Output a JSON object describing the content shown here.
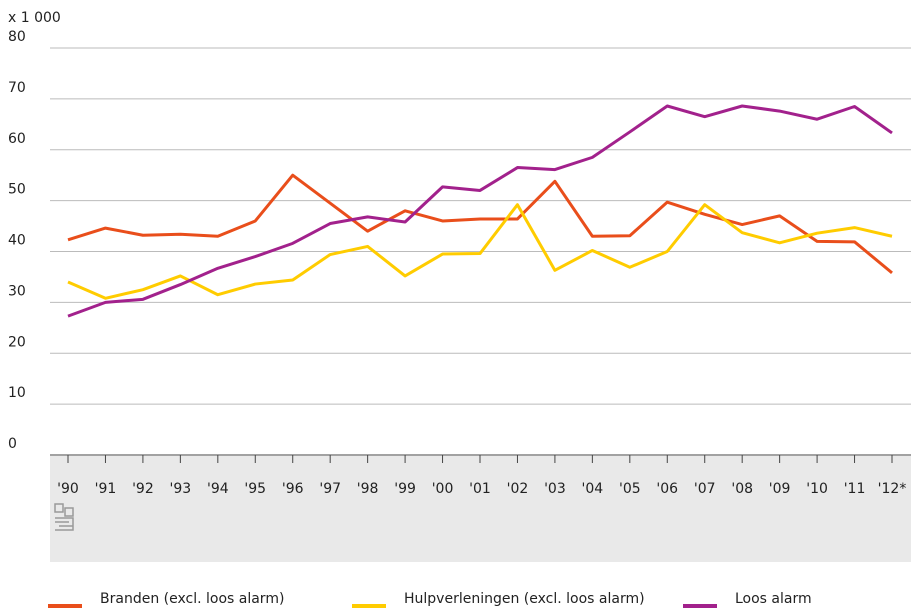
{
  "chart_data": {
    "type": "line",
    "y_label": "x 1 000",
    "categories": [
      "'90",
      "'91",
      "'92",
      "'93",
      "'94",
      "'95",
      "'96",
      "'97",
      "'98",
      "'99",
      "'00",
      "'01",
      "'02",
      "'03",
      "'04",
      "'05",
      "'06",
      "'07",
      "'08",
      "'09",
      "'10",
      "'11",
      "'12*"
    ],
    "series": [
      {
        "name": "Branden (excl. loos alarm)",
        "color": "#e94e1b",
        "values": [
          42.3,
          44.6,
          43.2,
          43.4,
          43.0,
          46.0,
          55.0,
          49.5,
          44.0,
          48.0,
          46.0,
          46.4,
          46.4,
          53.8,
          43.0,
          43.1,
          49.7,
          47.3,
          45.3,
          47.0,
          42.0,
          41.9,
          35.8
        ]
      },
      {
        "name": "Hulpverleningen (excl. loos alarm)",
        "color": "#ffcc00",
        "values": [
          34.0,
          30.8,
          32.5,
          35.2,
          31.5,
          33.6,
          34.4,
          39.4,
          41.0,
          35.2,
          39.5,
          39.6,
          49.2,
          36.3,
          40.2,
          36.9,
          40.0,
          49.2,
          43.7,
          41.7,
          43.6,
          44.7,
          43.0
        ]
      },
      {
        "name": "Loos alarm",
        "color": "#a2218c",
        "values": [
          27.3,
          30.0,
          30.6,
          33.5,
          36.7,
          39.0,
          41.6,
          45.5,
          46.8,
          45.8,
          52.7,
          52.0,
          56.5,
          56.1,
          58.5,
          63.5,
          68.6,
          66.5,
          68.6,
          67.6,
          66.0,
          68.5,
          63.3
        ]
      }
    ],
    "ylim": [
      0,
      80
    ],
    "yticks": [
      0,
      10,
      20,
      30,
      40,
      50,
      60,
      70,
      80
    ],
    "grid": true
  }
}
